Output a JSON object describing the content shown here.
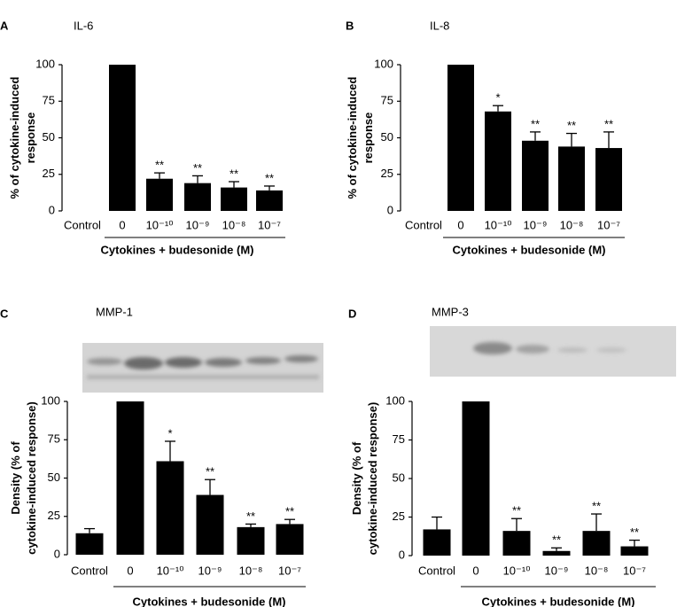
{
  "chart_data": [
    {
      "type": "bar",
      "panel": "A",
      "title": "IL-6",
      "ylabel": [
        "% of cytokine-induced",
        "response"
      ],
      "xlabel": "Cytokines + budesonide (M)",
      "categories": [
        "Control",
        "0",
        "10⁻¹⁰",
        "10⁻⁹",
        "10⁻⁸",
        "10⁻⁷"
      ],
      "values": [
        0,
        100,
        22,
        19,
        16,
        14
      ],
      "errors": [
        null,
        null,
        4,
        5,
        4,
        3
      ],
      "annotations": [
        null,
        null,
        "**",
        "**",
        "**",
        "**"
      ],
      "color": "#000000",
      "ylim": [
        0,
        100
      ],
      "yticks": [
        0,
        25,
        50,
        75,
        100
      ]
    },
    {
      "type": "bar",
      "panel": "B",
      "title": "IL-8",
      "ylabel": [
        "% of cytokine-induced",
        "response"
      ],
      "xlabel": "Cytokines + budesonide (M)",
      "categories": [
        "Control",
        "0",
        "10⁻¹⁰",
        "10⁻⁹",
        "10⁻⁸",
        "10⁻⁷"
      ],
      "values": [
        0,
        100,
        68,
        48,
        44,
        43
      ],
      "errors": [
        null,
        null,
        4,
        6,
        9,
        11
      ],
      "annotations": [
        null,
        null,
        "*",
        "**",
        "**",
        "**"
      ],
      "color": "#000000",
      "ylim": [
        0,
        100
      ],
      "yticks": [
        0,
        25,
        50,
        75,
        100
      ]
    },
    {
      "type": "bar",
      "panel": "C",
      "title": "MMP-1",
      "ylabel": [
        "Density (% of",
        "cytokine-induced  response)"
      ],
      "xlabel": "Cytokines + budesonide (M)",
      "categories": [
        "Control",
        "0",
        "10⁻¹⁰",
        "10⁻⁹",
        "10⁻⁸",
        "10⁻⁷"
      ],
      "values": [
        14,
        100,
        61,
        39,
        18,
        20
      ],
      "errors": [
        3,
        null,
        13,
        10,
        2,
        3
      ],
      "annotations": [
        null,
        null,
        "*",
        "**",
        "**",
        "**"
      ],
      "color": "#000000",
      "ylim": [
        0,
        100
      ],
      "yticks": [
        0,
        25,
        50,
        75,
        100
      ]
    },
    {
      "type": "bar",
      "panel": "D",
      "title": "MMP-3",
      "ylabel": [
        "Density (% of",
        "cytokine-induced  response)"
      ],
      "xlabel": "Cytokines + budesonide (M)",
      "categories": [
        "Control",
        "0",
        "10⁻¹⁰",
        "10⁻⁹",
        "10⁻⁸",
        "10⁻⁷"
      ],
      "values": [
        17,
        100,
        16,
        3,
        16,
        6
      ],
      "errors": [
        8,
        null,
        8,
        2,
        11,
        4
      ],
      "annotations": [
        null,
        null,
        "**",
        "**",
        "**",
        "**"
      ],
      "color": "#000000",
      "ylim": [
        0,
        100
      ],
      "yticks": [
        0,
        25,
        50,
        75,
        100
      ]
    }
  ]
}
